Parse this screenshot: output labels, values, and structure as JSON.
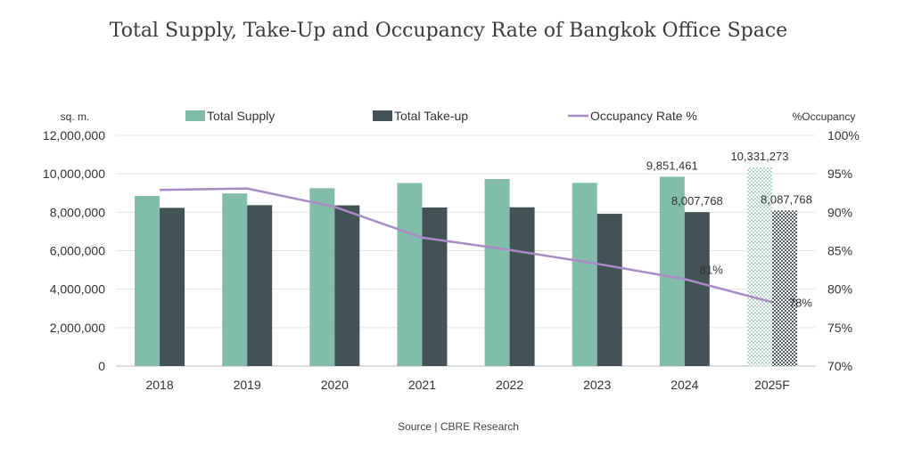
{
  "title": "Total Supply, Take-Up and Occupancy Rate of Bangkok Office Space",
  "source": "Source | CBRE Research",
  "chart_data": {
    "type": "bar",
    "categories": [
      "2018",
      "2019",
      "2020",
      "2021",
      "2022",
      "2023",
      "2024",
      "2025F"
    ],
    "series": [
      {
        "name": "Total Supply",
        "type": "bar",
        "axis": "left",
        "color": "#82bcab",
        "values": [
          8850000,
          8980000,
          9250000,
          9520000,
          9730000,
          9530000,
          9851461,
          10331273
        ]
      },
      {
        "name": "Total Take-up",
        "type": "bar",
        "axis": "left",
        "color": "#435254",
        "values": [
          8230000,
          8370000,
          8360000,
          8250000,
          8260000,
          7920000,
          8007768,
          8087768
        ]
      },
      {
        "name": "Occupancy Rate %",
        "type": "line",
        "axis": "right",
        "color": "#a98bc5",
        "values": [
          92.9,
          93.1,
          90.7,
          86.7,
          85.1,
          83.3,
          81.3,
          78.3
        ]
      }
    ],
    "data_labels": {
      "supply_2024": "9,851,461",
      "takeup_2024": "8,007,768",
      "supply_2025": "10,331,273",
      "takeup_2025": "8,087,768",
      "occ_2024": "81%",
      "occ_2025": "78%"
    },
    "ylabel_left": "sq. m.",
    "ylabel_right": "%Occupancy",
    "ylim_left": [
      0,
      12000000
    ],
    "ylim_right": [
      70,
      100
    ],
    "yticks_left": [
      "0",
      "2,000,000",
      "4,000,000",
      "6,000,000",
      "8,000,000",
      "10,000,000",
      "12,000,000"
    ],
    "yticks_right": [
      "70%",
      "75%",
      "80%",
      "85%",
      "90%",
      "95%",
      "100%"
    ],
    "grid": true,
    "legend_position": "top",
    "forecast_category": "2025F",
    "forecast_pattern": "hatched"
  }
}
